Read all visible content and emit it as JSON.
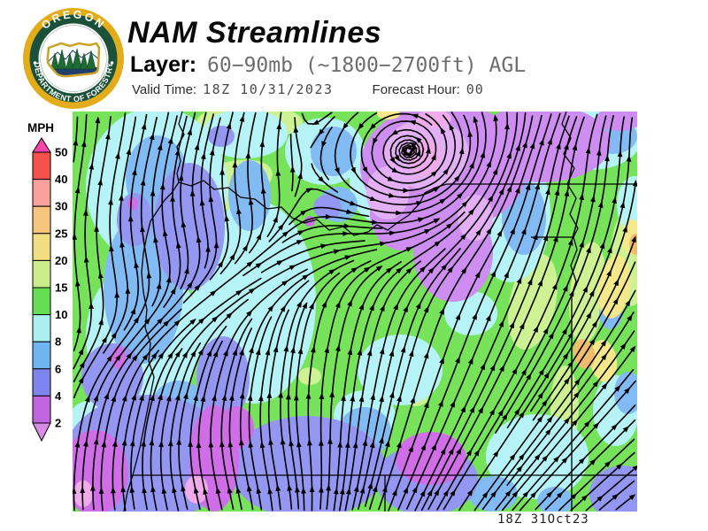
{
  "header": {
    "title": "NAM Streamlines",
    "layer_label": "Layer:",
    "layer_value": "60−90mb (~1800−2700ft) AGL",
    "valid_time_label": "Valid Time:",
    "valid_time_value": "18Z 10/31/2023",
    "forecast_hour_label": "Forecast Hour:",
    "forecast_hour_value": "00"
  },
  "logo": {
    "top_text": "OREGON",
    "bottom_text": "DEPARTMENT OF FORESTRY",
    "gold": "#E2AC1B",
    "green": "#1B5138"
  },
  "legend": {
    "title": "MPH",
    "unit_labels": [
      "50",
      "40",
      "30",
      "25",
      "20",
      "15",
      "10",
      "8",
      "6",
      "4",
      "2"
    ],
    "band_colors": [
      "#F4524C",
      "#F7A19A",
      "#F6C57F",
      "#F3DF83",
      "#CBEC8D",
      "#67DD55",
      "#ACEFEF",
      "#6FB5EF",
      "#7D84EC",
      "#C065E0"
    ],
    "over_color": "#F944AD",
    "under_color": "#D98BE8"
  },
  "map": {
    "timestamp": "18Z 31Oct23",
    "base_color": "#77E35B",
    "palette": {
      "paleyellow": "#CDF193",
      "cyan": "#B5F3F6",
      "blue": "#82BBF3",
      "periwinkle": "#9497F2",
      "orchid": "#CE8DF0",
      "magenta": "#D06EE8",
      "lavender": "#E3AFF5",
      "pink": "#F0ABEA",
      "yellow": "#F5E88B",
      "orange": "#F1BC6E",
      "streamline": "#000000",
      "border": "#000000"
    }
  }
}
